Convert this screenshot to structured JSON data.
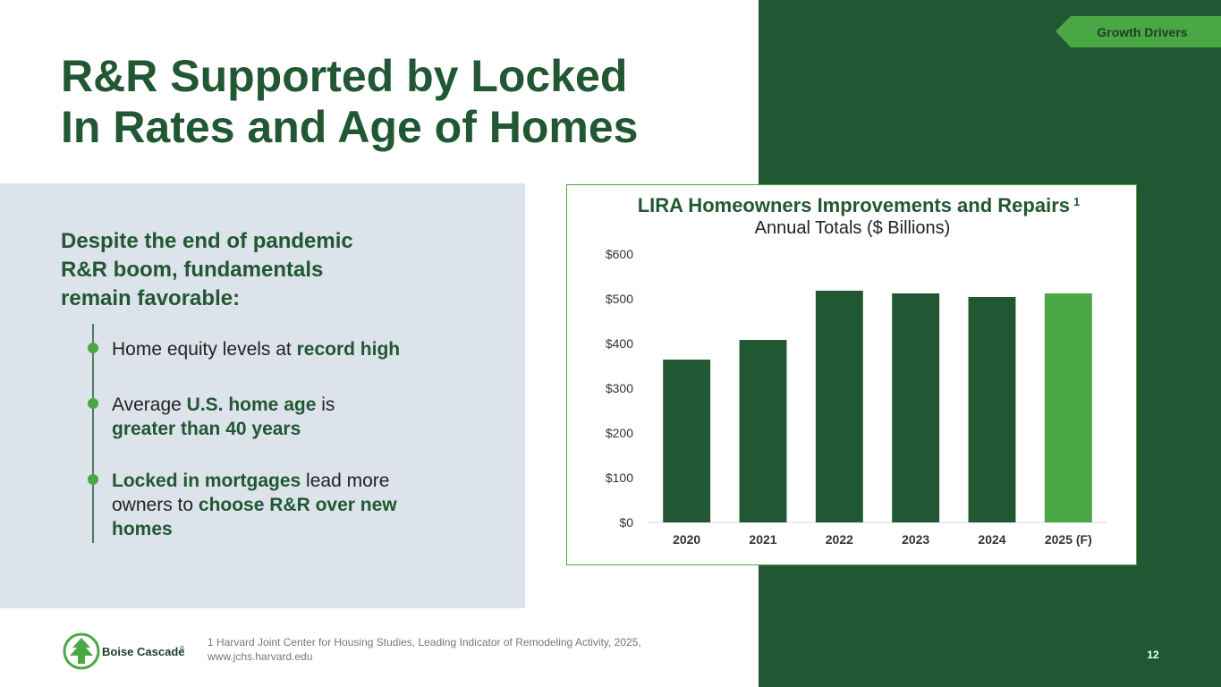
{
  "tag": "Growth Drivers",
  "title": [
    "R&R Supported by Locked",
    "In Rates and Age of Homes"
  ],
  "lead": [
    "Despite the end of pandemic",
    "R&R boom, fundamentals",
    "remain favorable:"
  ],
  "bullets": [
    {
      "lines": [
        [
          {
            "text": "Home equity levels at ",
            "strong": false
          },
          {
            "text": "record high",
            "strong": true
          }
        ]
      ]
    },
    {
      "lines": [
        [
          {
            "text": "Average ",
            "strong": false
          },
          {
            "text": "U.S. home age",
            "strong": true
          },
          {
            "text": " is",
            "strong": false
          }
        ],
        [
          {
            "text": "greater than 40 years",
            "strong": true
          }
        ]
      ]
    },
    {
      "lines": [
        [
          {
            "text": "Locked in mortgages",
            "strong": true
          },
          {
            "text": " lead more",
            "strong": false
          }
        ],
        [
          {
            "text": "owners to ",
            "strong": false
          },
          {
            "text": "choose R&R over new",
            "strong": true
          }
        ],
        [
          {
            "text": "homes",
            "strong": true
          }
        ]
      ]
    }
  ],
  "chart_data": {
    "type": "bar",
    "title": "LIRA Homeowners Improvements and Repairs",
    "title_note": "1",
    "subtitle": "Annual Totals ($ Billions)",
    "categories": [
      "2020",
      "2021",
      "2022",
      "2023",
      "2024",
      "2025 (F)"
    ],
    "values": [
      364,
      408,
      518,
      512,
      504,
      512
    ],
    "colors": [
      "#215732",
      "#215732",
      "#215732",
      "#215732",
      "#215732",
      "#4aa844"
    ],
    "ylim": [
      0,
      600
    ],
    "yticks": [
      {
        "value": 0,
        "label": "$0"
      },
      {
        "value": 100,
        "label": "$100"
      },
      {
        "value": 200,
        "label": "$200"
      },
      {
        "value": 300,
        "label": "$300"
      },
      {
        "value": 400,
        "label": "$400"
      },
      {
        "value": 500,
        "label": "$500"
      },
      {
        "value": 600,
        "label": "$600"
      }
    ],
    "grid": false
  },
  "footnote": [
    "1 Harvard Joint Center for Housing Studies, Leading Indicator of Remodeling Activity, 2025,",
    "www.jchs.harvard.edu"
  ],
  "logo": {
    "name": "Boise Cascade",
    "mark": "®"
  },
  "page_number": "12"
}
